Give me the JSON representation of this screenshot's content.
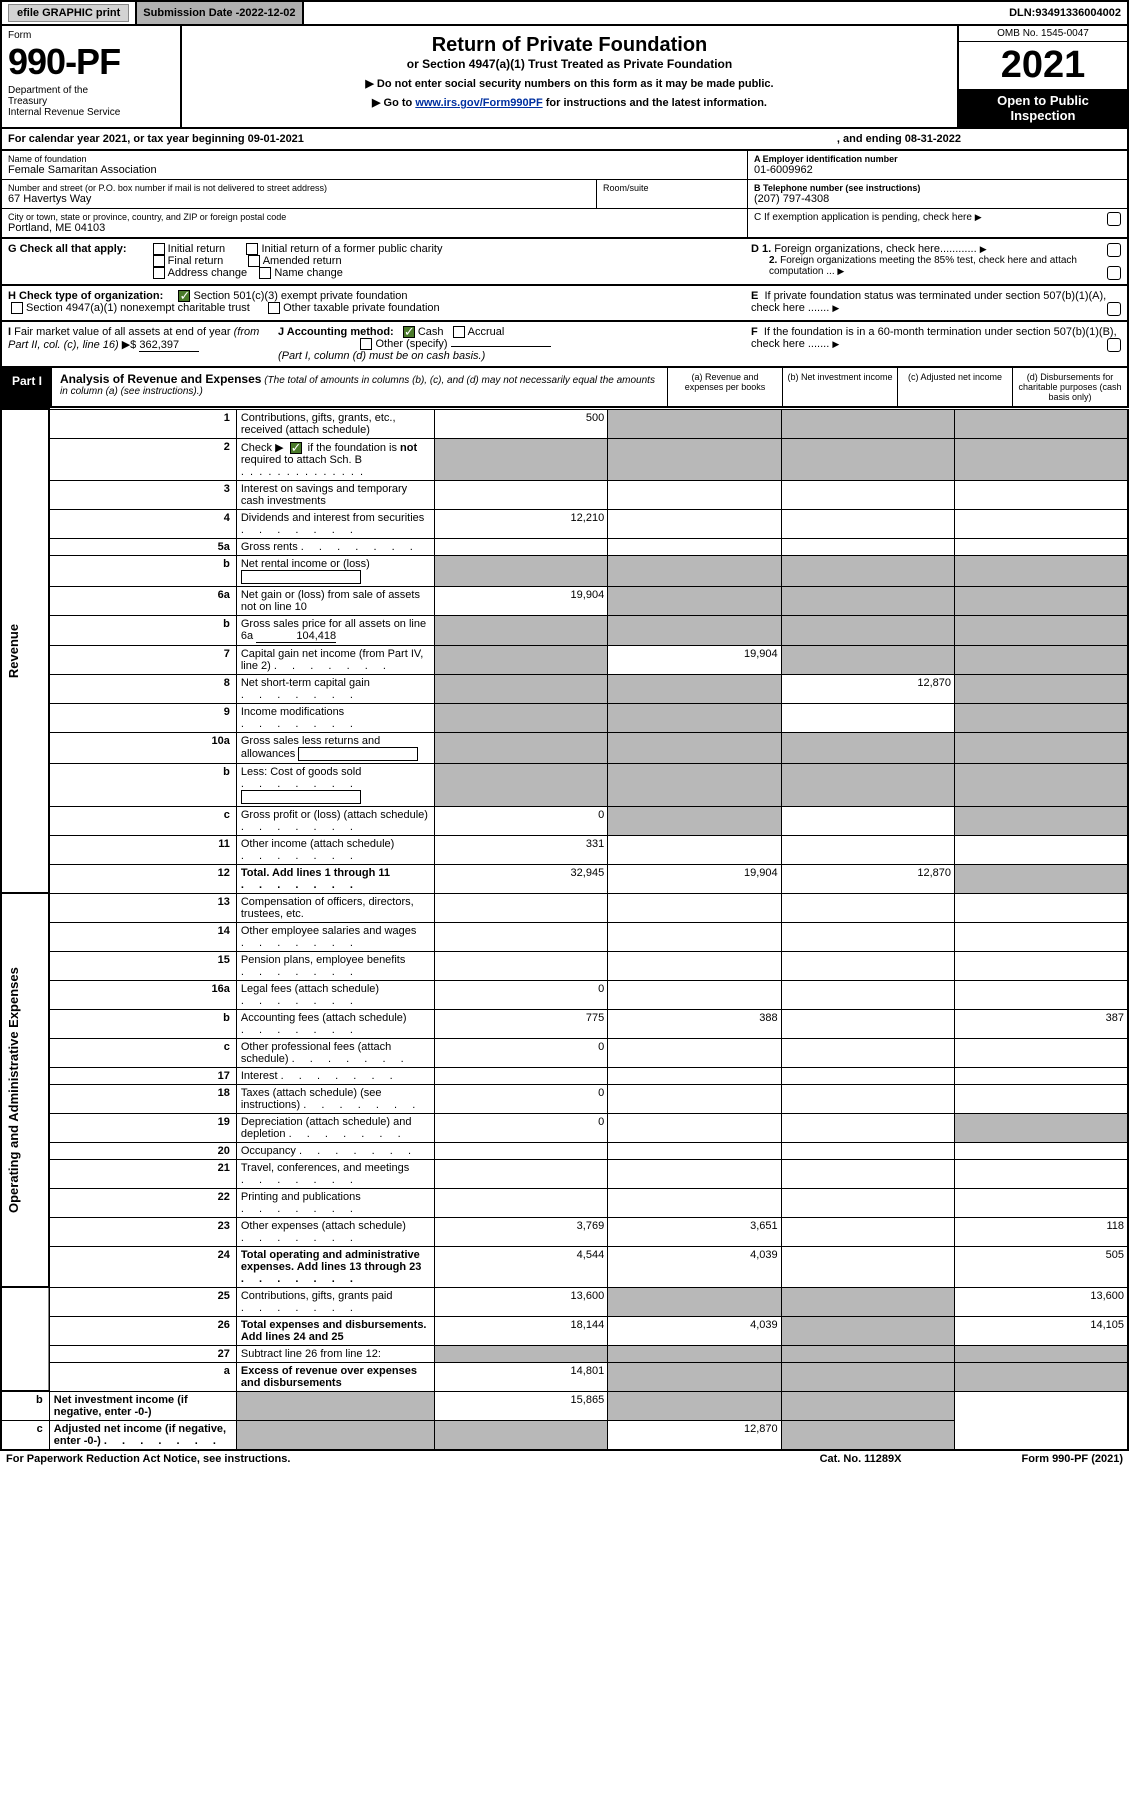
{
  "topbar": {
    "efile": "efile GRAPHIC print",
    "subdate_label": "Submission Date - ",
    "subdate": "2022-12-02",
    "dln_label": "DLN: ",
    "dln": "93491336004002"
  },
  "header": {
    "form_label": "Form",
    "form_num": "990-PF",
    "dept": "Department of the Treasury\nInternal Revenue Service",
    "title": "Return of Private Foundation",
    "subtitle": "or Section 4947(a)(1) Trust Treated as Private Foundation",
    "inst1": "▶ Do not enter social security numbers on this form as it may be made public.",
    "inst2_pre": "▶ Go to ",
    "inst2_link": "www.irs.gov/Form990PF",
    "inst2_post": " for instructions and the latest information.",
    "omb": "OMB No. 1545-0047",
    "year": "2021",
    "otp": "Open to Public Inspection"
  },
  "calyear": {
    "text": "For calendar year 2021, or tax year beginning 09-01-2021",
    "end": ", and ending 08-31-2022"
  },
  "entity": {
    "name_lbl": "Name of foundation",
    "name": "Female Samaritan Association",
    "addr_lbl": "Number and street (or P.O. box number if mail is not delivered to street address)",
    "addr": "67 Havertys Way",
    "room_lbl": "Room/suite",
    "city_lbl": "City or town, state or province, country, and ZIP or foreign postal code",
    "city": "Portland, ME  04103",
    "ein_lbl": "A Employer identification number",
    "ein": "01-6009962",
    "tel_lbl": "B Telephone number (see instructions)",
    "tel": "(207) 797-4308",
    "c_lbl": "C If exemption application is pending, check here"
  },
  "sectionG": {
    "label": "G Check all that apply:",
    "opts": [
      "Initial return",
      "Initial return of a former public charity",
      "Final return",
      "Amended return",
      "Address change",
      "Name change"
    ],
    "d1": "D 1. Foreign organizations, check here............",
    "d2": "2. Foreign organizations meeting the 85% test, check here and attach computation ...",
    "e": "E  If private foundation status was terminated under section 507(b)(1)(A), check here ......."
  },
  "sectionH": {
    "label": "H Check type of organization:",
    "opt1": "Section 501(c)(3) exempt private foundation",
    "opt2": "Section 4947(a)(1) nonexempt charitable trust",
    "opt3": "Other taxable private foundation"
  },
  "sectionI": {
    "label": "I Fair market value of all assets at end of year (from Part II, col. (c), line 16)",
    "val": "362,397",
    "j_label": "J Accounting method:",
    "j_opts": [
      "Cash",
      "Accrual",
      "Other (specify)"
    ],
    "j_note": "(Part I, column (d) must be on cash basis.)",
    "f": "F  If the foundation is in a 60-month termination under section 507(b)(1)(B), check here ......."
  },
  "part1": {
    "badge": "Part I",
    "title": "Analysis of Revenue and Expenses",
    "note": "(The total of amounts in columns (b), (c), and (d) may not necessarily equal the amounts in column (a) (see instructions).)",
    "cols": {
      "a": "(a)   Revenue and expenses per books",
      "b": "(b)   Net investment income",
      "c": "(c)   Adjusted net income",
      "d": "(d)  Disbursements for charitable purposes (cash basis only)"
    }
  },
  "sides": {
    "rev": "Revenue",
    "exp": "Operating and Administrative Expenses"
  },
  "rows": [
    {
      "n": "1",
      "d": "Contributions, gifts, grants, etc., received (attach schedule)",
      "a": "500",
      "grey": [
        "b",
        "c",
        "d"
      ]
    },
    {
      "n": "2",
      "d": "Check ▶ ☑ if the foundation is not required to attach Sch. B",
      "grey": [
        "a",
        "b",
        "c",
        "d"
      ],
      "bold_not": true
    },
    {
      "n": "3",
      "d": "Interest on savings and temporary cash investments"
    },
    {
      "n": "4",
      "d": "Dividends and interest from securities",
      "a": "12,210",
      "dots": true
    },
    {
      "n": "5a",
      "d": "Gross rents",
      "dots": true
    },
    {
      "n": "b",
      "d": "Net rental income or (loss)",
      "inline_box": true,
      "grey": [
        "a",
        "b",
        "c",
        "d"
      ]
    },
    {
      "n": "6a",
      "d": "Net gain or (loss) from sale of assets not on line 10",
      "a": "19,904",
      "grey": [
        "b",
        "c",
        "d"
      ]
    },
    {
      "n": "b",
      "d": "Gross sales price for all assets on line 6a",
      "inline_val": "104,418",
      "grey": [
        "a",
        "b",
        "c",
        "d"
      ]
    },
    {
      "n": "7",
      "d": "Capital gain net income (from Part IV, line 2)",
      "b": "19,904",
      "grey": [
        "a",
        "c",
        "d"
      ],
      "dots": true
    },
    {
      "n": "8",
      "d": "Net short-term capital gain",
      "c": "12,870",
      "grey": [
        "a",
        "b",
        "d"
      ],
      "dots": true
    },
    {
      "n": "9",
      "d": "Income modifications",
      "grey": [
        "a",
        "b",
        "d"
      ],
      "dots": true
    },
    {
      "n": "10a",
      "d": "Gross sales less returns and allowances",
      "inline_box": true,
      "grey": [
        "a",
        "b",
        "c",
        "d"
      ]
    },
    {
      "n": "b",
      "d": "Less: Cost of goods sold",
      "inline_box": true,
      "grey": [
        "a",
        "b",
        "c",
        "d"
      ],
      "dots": true
    },
    {
      "n": "c",
      "d": "Gross profit or (loss) (attach schedule)",
      "a": "0",
      "grey": [
        "b",
        "d"
      ],
      "dots": true
    },
    {
      "n": "11",
      "d": "Other income (attach schedule)",
      "a": "331",
      "dots": true
    },
    {
      "n": "12",
      "d": "Total. Add lines 1 through 11",
      "a": "32,945",
      "b": "19,904",
      "c": "12,870",
      "grey": [
        "d"
      ],
      "bold": true,
      "dots": true
    },
    {
      "n": "13",
      "d": "Compensation of officers, directors, trustees, etc.",
      "sec": "exp"
    },
    {
      "n": "14",
      "d": "Other employee salaries and wages",
      "dots": true
    },
    {
      "n": "15",
      "d": "Pension plans, employee benefits",
      "dots": true
    },
    {
      "n": "16a",
      "d": "Legal fees (attach schedule)",
      "a": "0",
      "dots": true
    },
    {
      "n": "b",
      "d": "Accounting fees (attach schedule)",
      "a": "775",
      "b": "388",
      "d_": "387",
      "dots": true
    },
    {
      "n": "c",
      "d": "Other professional fees (attach schedule)",
      "a": "0",
      "dots": true
    },
    {
      "n": "17",
      "d": "Interest",
      "dots": true
    },
    {
      "n": "18",
      "d": "Taxes (attach schedule) (see instructions)",
      "a": "0",
      "dots": true
    },
    {
      "n": "19",
      "d": "Depreciation (attach schedule) and depletion",
      "a": "0",
      "grey": [
        "d"
      ],
      "dots": true
    },
    {
      "n": "20",
      "d": "Occupancy",
      "dots": true
    },
    {
      "n": "21",
      "d": "Travel, conferences, and meetings",
      "dots": true
    },
    {
      "n": "22",
      "d": "Printing and publications",
      "dots": true
    },
    {
      "n": "23",
      "d": "Other expenses (attach schedule)",
      "a": "3,769",
      "b": "3,651",
      "d_": "118",
      "dots": true
    },
    {
      "n": "24",
      "d": "Total operating and administrative expenses. Add lines 13 through 23",
      "a": "4,544",
      "b": "4,039",
      "d_": "505",
      "bold": true,
      "dots": true
    },
    {
      "n": "25",
      "d": "Contributions, gifts, grants paid",
      "a": "13,600",
      "d_": "13,600",
      "grey": [
        "b",
        "c"
      ],
      "dots": true
    },
    {
      "n": "26",
      "d": "Total expenses and disbursements. Add lines 24 and 25",
      "a": "18,144",
      "b": "4,039",
      "d_": "14,105",
      "grey": [
        "c"
      ],
      "bold": true
    },
    {
      "n": "27",
      "d": "Subtract line 26 from line 12:",
      "grey": [
        "a",
        "b",
        "c",
        "d"
      ],
      "noside": true
    },
    {
      "n": "a",
      "d": "Excess of revenue over expenses and disbursements",
      "a": "14,801",
      "grey": [
        "b",
        "c",
        "d"
      ],
      "bold": true
    },
    {
      "n": "b",
      "d": "Net investment income (if negative, enter -0-)",
      "b": "15,865",
      "grey": [
        "a",
        "c",
        "d"
      ],
      "bold": true
    },
    {
      "n": "c",
      "d": "Adjusted net income (if negative, enter -0-)",
      "c": "12,870",
      "grey": [
        "a",
        "b",
        "d"
      ],
      "bold": true,
      "dots": true
    }
  ],
  "footer": {
    "left": "For Paperwork Reduction Act Notice, see instructions.",
    "mid": "Cat. No. 11289X",
    "right": "Form 990-PF (2021)"
  },
  "colors": {
    "grey_cell": "#b8b8b8",
    "link": "#0030a0",
    "check_green": "#4a7a2a"
  }
}
